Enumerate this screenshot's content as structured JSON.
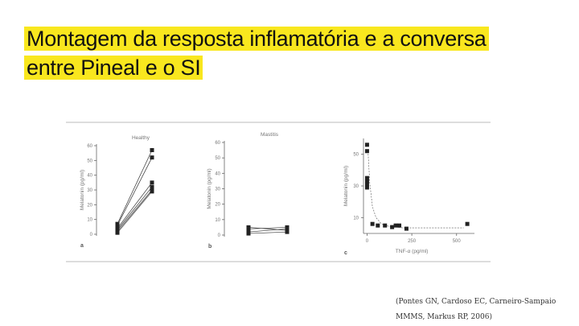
{
  "slide": {
    "title": "Montagem da resposta inflamatória e a conversa entre Pineal e o SI",
    "citation": "(Pontes GN, Cardoso EC, Carneiro-Sampaio MMMS, Markus RP, 2006)",
    "highlight_color": "#f9e71e"
  },
  "chart_data": [
    {
      "type": "line",
      "panel_label": "a",
      "title": "Healthy",
      "ylabel": "Melatonin (pg/ml)",
      "ylim": [
        0,
        60
      ],
      "yticks": [
        "0",
        "10",
        "20",
        "30",
        "40",
        "50",
        "60"
      ],
      "series": [
        {
          "values": [
            7,
            57
          ]
        },
        {
          "values": [
            6,
            52
          ]
        },
        {
          "values": [
            4,
            35
          ]
        },
        {
          "values": [
            3,
            32
          ]
        },
        {
          "values": [
            2,
            30
          ]
        },
        {
          "values": [
            1,
            29
          ]
        }
      ]
    },
    {
      "type": "line",
      "panel_label": "b",
      "title": "Mastitis",
      "ylabel": "Melatonin (pg/ml)",
      "ylim": [
        0,
        60
      ],
      "yticks": [
        "0",
        "10",
        "20",
        "30",
        "40",
        "50",
        "60"
      ],
      "series": [
        {
          "values": [
            5,
            3
          ]
        },
        {
          "values": [
            4,
            5
          ]
        },
        {
          "values": [
            2,
            4
          ]
        },
        {
          "values": [
            1,
            2
          ]
        }
      ]
    },
    {
      "type": "scatter",
      "panel_label": "c",
      "xlabel": "TNF-α (pg/ml)",
      "ylabel": "Melatonin (pg/ml)",
      "xlim": [
        -20,
        600
      ],
      "ylim": [
        0,
        60
      ],
      "xticks": [
        "0",
        "250",
        "500"
      ],
      "yticks": [
        "10",
        "30",
        "50"
      ],
      "points": [
        {
          "x": 0,
          "y": 56
        },
        {
          "x": 0,
          "y": 52
        },
        {
          "x": 0,
          "y": 35
        },
        {
          "x": 0,
          "y": 33
        },
        {
          "x": 0,
          "y": 31
        },
        {
          "x": 0,
          "y": 29
        },
        {
          "x": 30,
          "y": 6
        },
        {
          "x": 60,
          "y": 5
        },
        {
          "x": 100,
          "y": 5
        },
        {
          "x": 140,
          "y": 4
        },
        {
          "x": 160,
          "y": 5
        },
        {
          "x": 180,
          "y": 5
        },
        {
          "x": 220,
          "y": 3
        },
        {
          "x": 560,
          "y": 6
        }
      ],
      "fit": [
        [
          5,
          52
        ],
        [
          15,
          32
        ],
        [
          30,
          17
        ],
        [
          50,
          10
        ],
        [
          80,
          6
        ],
        [
          120,
          4.5
        ],
        [
          200,
          3.5
        ],
        [
          540,
          3.5
        ]
      ]
    }
  ]
}
